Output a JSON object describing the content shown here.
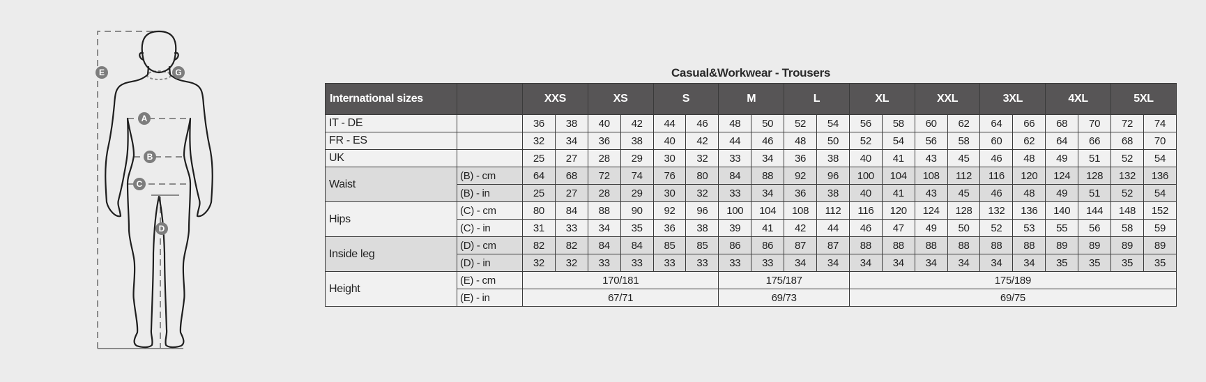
{
  "title": "Casual&Workwear - Trousers",
  "header": {
    "first": "International sizes",
    "sizes": [
      "XXS",
      "XS",
      "S",
      "M",
      "L",
      "XL",
      "XXL",
      "3XL",
      "4XL",
      "5XL"
    ]
  },
  "colors": {
    "header_bg": "#575556",
    "light_row": "#f1f1f1",
    "dark_row": "#dcdcdc",
    "marker": "#7d7d7d"
  },
  "figure": {
    "markers": [
      "A",
      "B",
      "C",
      "D",
      "E",
      "G"
    ]
  },
  "rows": [
    {
      "group": "IT - DE",
      "sub": "",
      "shade": "light",
      "values": [
        "36",
        "38",
        "40",
        "42",
        "44",
        "46",
        "48",
        "50",
        "52",
        "54",
        "56",
        "58",
        "60",
        "62",
        "64",
        "66",
        "68",
        "70",
        "72",
        "74"
      ]
    },
    {
      "group": "FR - ES",
      "sub": "",
      "shade": "light",
      "values": [
        "32",
        "34",
        "36",
        "38",
        "40",
        "42",
        "44",
        "46",
        "48",
        "50",
        "52",
        "54",
        "56",
        "58",
        "60",
        "62",
        "64",
        "66",
        "68",
        "70"
      ]
    },
    {
      "group": "UK",
      "sub": "",
      "shade": "light",
      "values": [
        "25",
        "27",
        "28",
        "29",
        "30",
        "32",
        "33",
        "34",
        "36",
        "38",
        "40",
        "41",
        "43",
        "45",
        "46",
        "48",
        "49",
        "51",
        "52",
        "54"
      ]
    },
    {
      "group": "Waist",
      "sub": "(B) - cm",
      "shade": "dark",
      "span_start": true,
      "values": [
        "64",
        "68",
        "72",
        "74",
        "76",
        "80",
        "84",
        "88",
        "92",
        "96",
        "100",
        "104",
        "108",
        "112",
        "116",
        "120",
        "124",
        "128",
        "132",
        "136"
      ]
    },
    {
      "sub": "(B) - in",
      "shade": "dark",
      "values": [
        "25",
        "27",
        "28",
        "29",
        "30",
        "32",
        "33",
        "34",
        "36",
        "38",
        "40",
        "41",
        "43",
        "45",
        "46",
        "48",
        "49",
        "51",
        "52",
        "54"
      ]
    },
    {
      "group": "Hips",
      "sub": "(C) - cm",
      "shade": "light",
      "span_start": true,
      "values": [
        "80",
        "84",
        "88",
        "90",
        "92",
        "96",
        "100",
        "104",
        "108",
        "112",
        "116",
        "120",
        "124",
        "128",
        "132",
        "136",
        "140",
        "144",
        "148",
        "152"
      ]
    },
    {
      "sub": "(C) - in",
      "shade": "light",
      "values": [
        "31",
        "33",
        "34",
        "35",
        "36",
        "38",
        "39",
        "41",
        "42",
        "44",
        "46",
        "47",
        "49",
        "50",
        "52",
        "53",
        "55",
        "56",
        "58",
        "59"
      ]
    },
    {
      "group": "Inside leg",
      "sub": "(D) - cm",
      "shade": "dark",
      "span_start": true,
      "values": [
        "82",
        "82",
        "84",
        "84",
        "85",
        "85",
        "86",
        "86",
        "87",
        "87",
        "88",
        "88",
        "88",
        "88",
        "88",
        "88",
        "89",
        "89",
        "89",
        "89"
      ]
    },
    {
      "sub": "(D) - in",
      "shade": "dark",
      "values": [
        "32",
        "32",
        "33",
        "33",
        "33",
        "33",
        "33",
        "33",
        "34",
        "34",
        "34",
        "34",
        "34",
        "34",
        "34",
        "34",
        "35",
        "35",
        "35",
        "35"
      ]
    },
    {
      "group": "Height",
      "sub": "(E) - cm",
      "shade": "light",
      "span_start": true,
      "merged": [
        {
          "text": "170/181",
          "span": 6
        },
        {
          "text": "175/187",
          "span": 4
        },
        {
          "text": "175/189",
          "span": 10
        }
      ]
    },
    {
      "sub": "(E) - in",
      "shade": "light",
      "merged": [
        {
          "text": "67/71",
          "span": 6
        },
        {
          "text": "69/73",
          "span": 4
        },
        {
          "text": "69/75",
          "span": 10
        }
      ]
    }
  ]
}
